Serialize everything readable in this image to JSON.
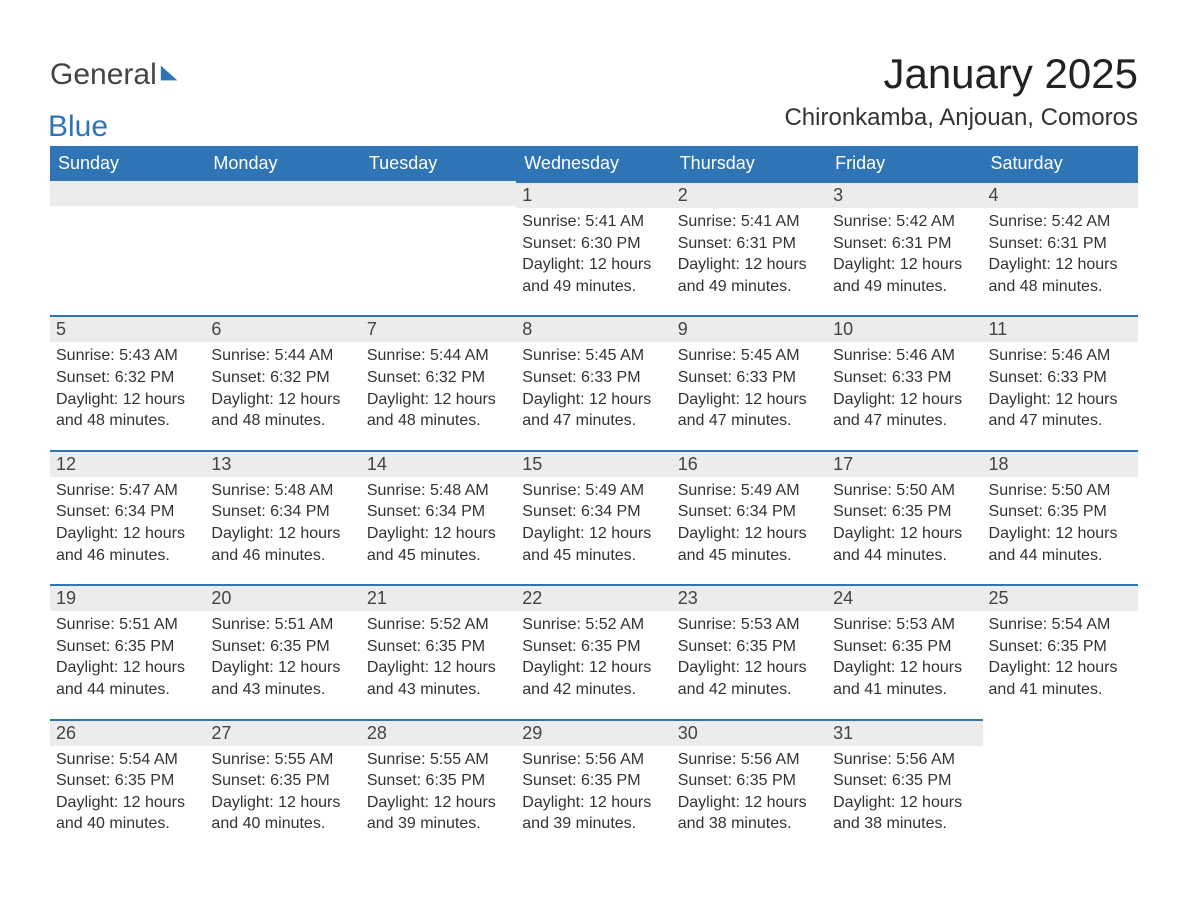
{
  "logo": {
    "general": "General",
    "blue": "Blue"
  },
  "title": "January 2025",
  "location": "Chironkamba, Anjouan, Comoros",
  "colors": {
    "header_bg": "#2f74b5",
    "header_text": "#ffffff",
    "daynum_bg": "#ececec",
    "daynum_border": "#2f74b5",
    "body_text": "#333333",
    "page_bg": "#ffffff"
  },
  "typography": {
    "title_fontsize": 42,
    "subtitle_fontsize": 24,
    "header_fontsize": 18,
    "body_fontsize": 16
  },
  "weekdays": [
    "Sunday",
    "Monday",
    "Tuesday",
    "Wednesday",
    "Thursday",
    "Friday",
    "Saturday"
  ],
  "weeks": [
    [
      null,
      null,
      null,
      {
        "n": "1",
        "sunrise": "5:41 AM",
        "sunset": "6:30 PM",
        "dl": "12 hours and 49 minutes."
      },
      {
        "n": "2",
        "sunrise": "5:41 AM",
        "sunset": "6:31 PM",
        "dl": "12 hours and 49 minutes."
      },
      {
        "n": "3",
        "sunrise": "5:42 AM",
        "sunset": "6:31 PM",
        "dl": "12 hours and 49 minutes."
      },
      {
        "n": "4",
        "sunrise": "5:42 AM",
        "sunset": "6:31 PM",
        "dl": "12 hours and 48 minutes."
      }
    ],
    [
      {
        "n": "5",
        "sunrise": "5:43 AM",
        "sunset": "6:32 PM",
        "dl": "12 hours and 48 minutes."
      },
      {
        "n": "6",
        "sunrise": "5:44 AM",
        "sunset": "6:32 PM",
        "dl": "12 hours and 48 minutes."
      },
      {
        "n": "7",
        "sunrise": "5:44 AM",
        "sunset": "6:32 PM",
        "dl": "12 hours and 48 minutes."
      },
      {
        "n": "8",
        "sunrise": "5:45 AM",
        "sunset": "6:33 PM",
        "dl": "12 hours and 47 minutes."
      },
      {
        "n": "9",
        "sunrise": "5:45 AM",
        "sunset": "6:33 PM",
        "dl": "12 hours and 47 minutes."
      },
      {
        "n": "10",
        "sunrise": "5:46 AM",
        "sunset": "6:33 PM",
        "dl": "12 hours and 47 minutes."
      },
      {
        "n": "11",
        "sunrise": "5:46 AM",
        "sunset": "6:33 PM",
        "dl": "12 hours and 47 minutes."
      }
    ],
    [
      {
        "n": "12",
        "sunrise": "5:47 AM",
        "sunset": "6:34 PM",
        "dl": "12 hours and 46 minutes."
      },
      {
        "n": "13",
        "sunrise": "5:48 AM",
        "sunset": "6:34 PM",
        "dl": "12 hours and 46 minutes."
      },
      {
        "n": "14",
        "sunrise": "5:48 AM",
        "sunset": "6:34 PM",
        "dl": "12 hours and 45 minutes."
      },
      {
        "n": "15",
        "sunrise": "5:49 AM",
        "sunset": "6:34 PM",
        "dl": "12 hours and 45 minutes."
      },
      {
        "n": "16",
        "sunrise": "5:49 AM",
        "sunset": "6:34 PM",
        "dl": "12 hours and 45 minutes."
      },
      {
        "n": "17",
        "sunrise": "5:50 AM",
        "sunset": "6:35 PM",
        "dl": "12 hours and 44 minutes."
      },
      {
        "n": "18",
        "sunrise": "5:50 AM",
        "sunset": "6:35 PM",
        "dl": "12 hours and 44 minutes."
      }
    ],
    [
      {
        "n": "19",
        "sunrise": "5:51 AM",
        "sunset": "6:35 PM",
        "dl": "12 hours and 44 minutes."
      },
      {
        "n": "20",
        "sunrise": "5:51 AM",
        "sunset": "6:35 PM",
        "dl": "12 hours and 43 minutes."
      },
      {
        "n": "21",
        "sunrise": "5:52 AM",
        "sunset": "6:35 PM",
        "dl": "12 hours and 43 minutes."
      },
      {
        "n": "22",
        "sunrise": "5:52 AM",
        "sunset": "6:35 PM",
        "dl": "12 hours and 42 minutes."
      },
      {
        "n": "23",
        "sunrise": "5:53 AM",
        "sunset": "6:35 PM",
        "dl": "12 hours and 42 minutes."
      },
      {
        "n": "24",
        "sunrise": "5:53 AM",
        "sunset": "6:35 PM",
        "dl": "12 hours and 41 minutes."
      },
      {
        "n": "25",
        "sunrise": "5:54 AM",
        "sunset": "6:35 PM",
        "dl": "12 hours and 41 minutes."
      }
    ],
    [
      {
        "n": "26",
        "sunrise": "5:54 AM",
        "sunset": "6:35 PM",
        "dl": "12 hours and 40 minutes."
      },
      {
        "n": "27",
        "sunrise": "5:55 AM",
        "sunset": "6:35 PM",
        "dl": "12 hours and 40 minutes."
      },
      {
        "n": "28",
        "sunrise": "5:55 AM",
        "sunset": "6:35 PM",
        "dl": "12 hours and 39 minutes."
      },
      {
        "n": "29",
        "sunrise": "5:56 AM",
        "sunset": "6:35 PM",
        "dl": "12 hours and 39 minutes."
      },
      {
        "n": "30",
        "sunrise": "5:56 AM",
        "sunset": "6:35 PM",
        "dl": "12 hours and 38 minutes."
      },
      {
        "n": "31",
        "sunrise": "5:56 AM",
        "sunset": "6:35 PM",
        "dl": "12 hours and 38 minutes."
      },
      null
    ]
  ],
  "labels": {
    "sunrise": "Sunrise: ",
    "sunset": "Sunset: ",
    "daylight": "Daylight: "
  }
}
